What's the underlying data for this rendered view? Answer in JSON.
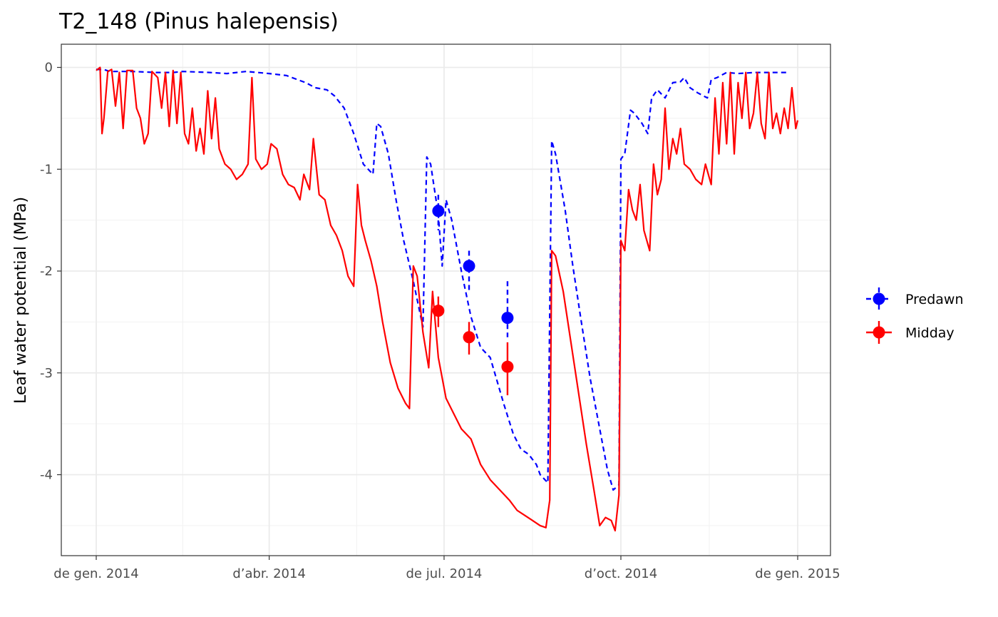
{
  "chart_data": {
    "type": "line",
    "title": "T2_148 (Pinus halepensis)",
    "xlabel": "",
    "ylabel": "Leaf water potential (MPa)",
    "xlim": [
      "2014-01-01",
      "2015-01-01"
    ],
    "ylim": [
      -4.75,
      0.2
    ],
    "x_ticks": [
      {
        "date": "2014-01-01",
        "label": "de gen. 2014"
      },
      {
        "date": "2014-04-01",
        "label": "d’abr. 2014"
      },
      {
        "date": "2014-07-01",
        "label": "de jul. 2014"
      },
      {
        "date": "2014-10-01",
        "label": "d’oct. 2014"
      },
      {
        "date": "2015-01-01",
        "label": "de gen. 2015"
      }
    ],
    "y_ticks": [
      0,
      -1,
      -2,
      -3,
      -4
    ],
    "y_tick_labels": [
      "0",
      "-1",
      "-2",
      "-3",
      "-4"
    ],
    "grid": true,
    "legend_position": "right",
    "legend": [
      {
        "label": "Predawn",
        "color": "#0000ff"
      },
      {
        "label": "Midday",
        "color": "#ff0000"
      }
    ],
    "series": [
      {
        "color": "#0000ff",
        "style": "dashed",
        "points": [
          [
            "2014-01-01",
            -0.02
          ],
          [
            "2014-01-05",
            -0.02
          ],
          [
            "2014-01-08",
            -0.04
          ],
          [
            "2014-01-12",
            -0.04
          ],
          [
            "2014-01-20",
            -0.04
          ],
          [
            "2014-02-01",
            -0.05
          ],
          [
            "2014-02-10",
            -0.05
          ],
          [
            "2014-02-15",
            -0.04
          ],
          [
            "2014-03-01",
            -0.05
          ],
          [
            "2014-03-10",
            -0.06
          ],
          [
            "2014-03-20",
            -0.04
          ],
          [
            "2014-04-01",
            -0.06
          ],
          [
            "2014-04-10",
            -0.08
          ],
          [
            "2014-04-20",
            -0.15
          ],
          [
            "2014-04-25",
            -0.2
          ],
          [
            "2014-05-01",
            -0.22
          ],
          [
            "2014-05-05",
            -0.28
          ],
          [
            "2014-05-10",
            -0.4
          ],
          [
            "2014-05-15",
            -0.65
          ],
          [
            "2014-05-20",
            -0.95
          ],
          [
            "2014-05-25",
            -1.05
          ],
          [
            "2014-05-27",
            -0.55
          ],
          [
            "2014-05-29",
            -0.58
          ],
          [
            "2014-06-02",
            -0.85
          ],
          [
            "2014-06-06",
            -1.3
          ],
          [
            "2014-06-10",
            -1.7
          ],
          [
            "2014-06-15",
            -2.1
          ],
          [
            "2014-06-20",
            -2.55
          ],
          [
            "2014-06-22",
            -0.88
          ],
          [
            "2014-06-24",
            -0.95
          ],
          [
            "2014-06-28",
            -1.45
          ],
          [
            "2014-06-30",
            -1.95
          ],
          [
            "2014-07-02",
            -1.3
          ],
          [
            "2014-07-05",
            -1.5
          ],
          [
            "2014-07-10",
            -2.0
          ],
          [
            "2014-07-15",
            -2.45
          ],
          [
            "2014-07-20",
            -2.75
          ],
          [
            "2014-07-25",
            -2.85
          ],
          [
            "2014-08-01",
            -3.3
          ],
          [
            "2014-08-06",
            -3.6
          ],
          [
            "2014-08-10",
            -3.75
          ],
          [
            "2014-08-14",
            -3.8
          ],
          [
            "2014-08-18",
            -3.9
          ],
          [
            "2014-08-20",
            -4.0
          ],
          [
            "2014-08-24",
            -4.08
          ],
          [
            "2014-08-26",
            -0.72
          ],
          [
            "2014-08-28",
            -0.85
          ],
          [
            "2014-09-02",
            -1.4
          ],
          [
            "2014-09-06",
            -1.95
          ],
          [
            "2014-09-10",
            -2.45
          ],
          [
            "2014-09-15",
            -3.05
          ],
          [
            "2014-09-20",
            -3.55
          ],
          [
            "2014-09-24",
            -3.95
          ],
          [
            "2014-09-27",
            -4.15
          ],
          [
            "2014-09-30",
            -4.1
          ],
          [
            "2014-10-01",
            -0.9
          ],
          [
            "2014-10-03",
            -0.85
          ],
          [
            "2014-10-06",
            -0.42
          ],
          [
            "2014-10-08",
            -0.45
          ],
          [
            "2014-10-12",
            -0.55
          ],
          [
            "2014-10-15",
            -0.65
          ],
          [
            "2014-10-17",
            -0.3
          ],
          [
            "2014-10-20",
            -0.22
          ],
          [
            "2014-10-24",
            -0.3
          ],
          [
            "2014-10-28",
            -0.15
          ],
          [
            "2014-11-01",
            -0.14
          ],
          [
            "2014-11-03",
            -0.1
          ],
          [
            "2014-11-06",
            -0.2
          ],
          [
            "2014-11-10",
            -0.25
          ],
          [
            "2014-11-15",
            -0.3
          ],
          [
            "2014-11-17",
            -0.12
          ],
          [
            "2014-11-20",
            -0.1
          ],
          [
            "2014-11-25",
            -0.05
          ],
          [
            "2014-12-01",
            -0.06
          ],
          [
            "2014-12-10",
            -0.05
          ],
          [
            "2014-12-20",
            -0.05
          ],
          [
            "2014-12-27",
            -0.05
          ]
        ]
      },
      {
        "color": "#ff0000",
        "style": "solid",
        "points": [
          [
            "2014-01-01",
            -0.03
          ],
          [
            "2014-01-03",
            0.0
          ],
          [
            "2014-01-04",
            -0.65
          ],
          [
            "2014-01-05",
            -0.5
          ],
          [
            "2014-01-07",
            -0.04
          ],
          [
            "2014-01-09",
            -0.02
          ],
          [
            "2014-01-11",
            -0.38
          ],
          [
            "2014-01-13",
            -0.05
          ],
          [
            "2014-01-15",
            -0.6
          ],
          [
            "2014-01-17",
            -0.03
          ],
          [
            "2014-01-20",
            -0.03
          ],
          [
            "2014-01-22",
            -0.4
          ],
          [
            "2014-01-24",
            -0.5
          ],
          [
            "2014-01-26",
            -0.75
          ],
          [
            "2014-01-28",
            -0.65
          ],
          [
            "2014-01-30",
            -0.04
          ],
          [
            "2014-02-02",
            -0.1
          ],
          [
            "2014-02-04",
            -0.4
          ],
          [
            "2014-02-06",
            -0.05
          ],
          [
            "2014-02-08",
            -0.58
          ],
          [
            "2014-02-10",
            -0.03
          ],
          [
            "2014-02-12",
            -0.55
          ],
          [
            "2014-02-14",
            -0.05
          ],
          [
            "2014-02-16",
            -0.65
          ],
          [
            "2014-02-18",
            -0.75
          ],
          [
            "2014-02-20",
            -0.4
          ],
          [
            "2014-02-22",
            -0.82
          ],
          [
            "2014-02-24",
            -0.6
          ],
          [
            "2014-02-26",
            -0.85
          ],
          [
            "2014-02-28",
            -0.23
          ],
          [
            "2014-03-02",
            -0.7
          ],
          [
            "2014-03-04",
            -0.3
          ],
          [
            "2014-03-06",
            -0.8
          ],
          [
            "2014-03-09",
            -0.95
          ],
          [
            "2014-03-12",
            -1.0
          ],
          [
            "2014-03-15",
            -1.1
          ],
          [
            "2014-03-18",
            -1.05
          ],
          [
            "2014-03-21",
            -0.95
          ],
          [
            "2014-03-23",
            -0.1
          ],
          [
            "2014-03-25",
            -0.9
          ],
          [
            "2014-03-28",
            -1.0
          ],
          [
            "2014-03-31",
            -0.95
          ],
          [
            "2014-04-02",
            -0.75
          ],
          [
            "2014-04-05",
            -0.8
          ],
          [
            "2014-04-08",
            -1.05
          ],
          [
            "2014-04-11",
            -1.15
          ],
          [
            "2014-04-14",
            -1.18
          ],
          [
            "2014-04-17",
            -1.3
          ],
          [
            "2014-04-19",
            -1.05
          ],
          [
            "2014-04-22",
            -1.2
          ],
          [
            "2014-04-24",
            -0.7
          ],
          [
            "2014-04-27",
            -1.25
          ],
          [
            "2014-04-30",
            -1.3
          ],
          [
            "2014-05-03",
            -1.55
          ],
          [
            "2014-05-06",
            -1.65
          ],
          [
            "2014-05-09",
            -1.8
          ],
          [
            "2014-05-12",
            -2.05
          ],
          [
            "2014-05-15",
            -2.15
          ],
          [
            "2014-05-17",
            -1.15
          ],
          [
            "2014-05-19",
            -1.55
          ],
          [
            "2014-05-21",
            -1.7
          ],
          [
            "2014-05-24",
            -1.9
          ],
          [
            "2014-05-27",
            -2.15
          ],
          [
            "2014-05-30",
            -2.5
          ],
          [
            "2014-06-03",
            -2.9
          ],
          [
            "2014-06-07",
            -3.15
          ],
          [
            "2014-06-11",
            -3.3
          ],
          [
            "2014-06-13",
            -3.35
          ],
          [
            "2014-06-15",
            -1.95
          ],
          [
            "2014-06-17",
            -2.05
          ],
          [
            "2014-06-20",
            -2.6
          ],
          [
            "2014-06-23",
            -2.95
          ],
          [
            "2014-06-25",
            -2.2
          ],
          [
            "2014-06-28",
            -2.85
          ],
          [
            "2014-07-02",
            -3.25
          ],
          [
            "2014-07-06",
            -3.4
          ],
          [
            "2014-07-10",
            -3.55
          ],
          [
            "2014-07-15",
            -3.65
          ],
          [
            "2014-07-20",
            -3.9
          ],
          [
            "2014-07-25",
            -4.05
          ],
          [
            "2014-07-30",
            -4.15
          ],
          [
            "2014-08-04",
            -4.25
          ],
          [
            "2014-08-08",
            -4.35
          ],
          [
            "2014-08-12",
            -4.4
          ],
          [
            "2014-08-16",
            -4.45
          ],
          [
            "2014-08-20",
            -4.5
          ],
          [
            "2014-08-23",
            -4.52
          ],
          [
            "2014-08-25",
            -4.25
          ],
          [
            "2014-08-26",
            -1.8
          ],
          [
            "2014-08-28",
            -1.85
          ],
          [
            "2014-09-01",
            -2.2
          ],
          [
            "2014-09-05",
            -2.7
          ],
          [
            "2014-09-09",
            -3.2
          ],
          [
            "2014-09-13",
            -3.7
          ],
          [
            "2014-09-17",
            -4.15
          ],
          [
            "2014-09-20",
            -4.5
          ],
          [
            "2014-09-23",
            -4.42
          ],
          [
            "2014-09-26",
            -4.45
          ],
          [
            "2014-09-28",
            -4.55
          ],
          [
            "2014-09-30",
            -4.2
          ],
          [
            "2014-10-01",
            -1.7
          ],
          [
            "2014-10-03",
            -1.8
          ],
          [
            "2014-10-05",
            -1.2
          ],
          [
            "2014-10-07",
            -1.4
          ],
          [
            "2014-10-09",
            -1.5
          ],
          [
            "2014-10-11",
            -1.15
          ],
          [
            "2014-10-13",
            -1.6
          ],
          [
            "2014-10-16",
            -1.8
          ],
          [
            "2014-10-18",
            -0.95
          ],
          [
            "2014-10-20",
            -1.25
          ],
          [
            "2014-10-22",
            -1.1
          ],
          [
            "2014-10-24",
            -0.4
          ],
          [
            "2014-10-26",
            -1.0
          ],
          [
            "2014-10-28",
            -0.7
          ],
          [
            "2014-10-30",
            -0.85
          ],
          [
            "2014-11-01",
            -0.6
          ],
          [
            "2014-11-03",
            -0.95
          ],
          [
            "2014-11-06",
            -1.0
          ],
          [
            "2014-11-09",
            -1.1
          ],
          [
            "2014-11-12",
            -1.15
          ],
          [
            "2014-11-14",
            -0.95
          ],
          [
            "2014-11-17",
            -1.15
          ],
          [
            "2014-11-19",
            -0.3
          ],
          [
            "2014-11-21",
            -0.85
          ],
          [
            "2014-11-23",
            -0.15
          ],
          [
            "2014-11-25",
            -0.75
          ],
          [
            "2014-11-27",
            -0.05
          ],
          [
            "2014-11-29",
            -0.85
          ],
          [
            "2014-12-01",
            -0.15
          ],
          [
            "2014-12-03",
            -0.5
          ],
          [
            "2014-12-05",
            -0.05
          ],
          [
            "2014-12-07",
            -0.6
          ],
          [
            "2014-12-09",
            -0.45
          ],
          [
            "2014-12-11",
            -0.05
          ],
          [
            "2014-12-13",
            -0.55
          ],
          [
            "2014-12-15",
            -0.7
          ],
          [
            "2014-12-17",
            -0.05
          ],
          [
            "2014-12-19",
            -0.6
          ],
          [
            "2014-12-21",
            -0.45
          ],
          [
            "2014-12-23",
            -0.65
          ],
          [
            "2014-12-25",
            -0.4
          ],
          [
            "2014-12-27",
            -0.6
          ],
          [
            "2014-12-29",
            -0.2
          ],
          [
            "2014-12-31",
            -0.6
          ],
          [
            "2015-01-01",
            -0.52
          ]
        ]
      }
    ],
    "measurements": [
      {
        "series": "Predawn",
        "color": "#0000ff",
        "style": "dashed",
        "points": [
          {
            "date": "2014-06-28",
            "value": -1.41,
            "low": -1.6,
            "high": -1.25
          },
          {
            "date": "2014-07-14",
            "value": -1.95,
            "low": -2.2,
            "high": -1.8
          },
          {
            "date": "2014-08-03",
            "value": -2.46,
            "low": -2.65,
            "high": -2.1
          }
        ]
      },
      {
        "series": "Midday",
        "color": "#ff0000",
        "style": "solid",
        "points": [
          {
            "date": "2014-06-28",
            "value": -2.39,
            "low": -2.55,
            "high": -2.25
          },
          {
            "date": "2014-07-14",
            "value": -2.65,
            "low": -2.82,
            "high": -2.5
          },
          {
            "date": "2014-08-03",
            "value": -2.94,
            "low": -3.22,
            "high": -2.7
          }
        ]
      }
    ]
  }
}
